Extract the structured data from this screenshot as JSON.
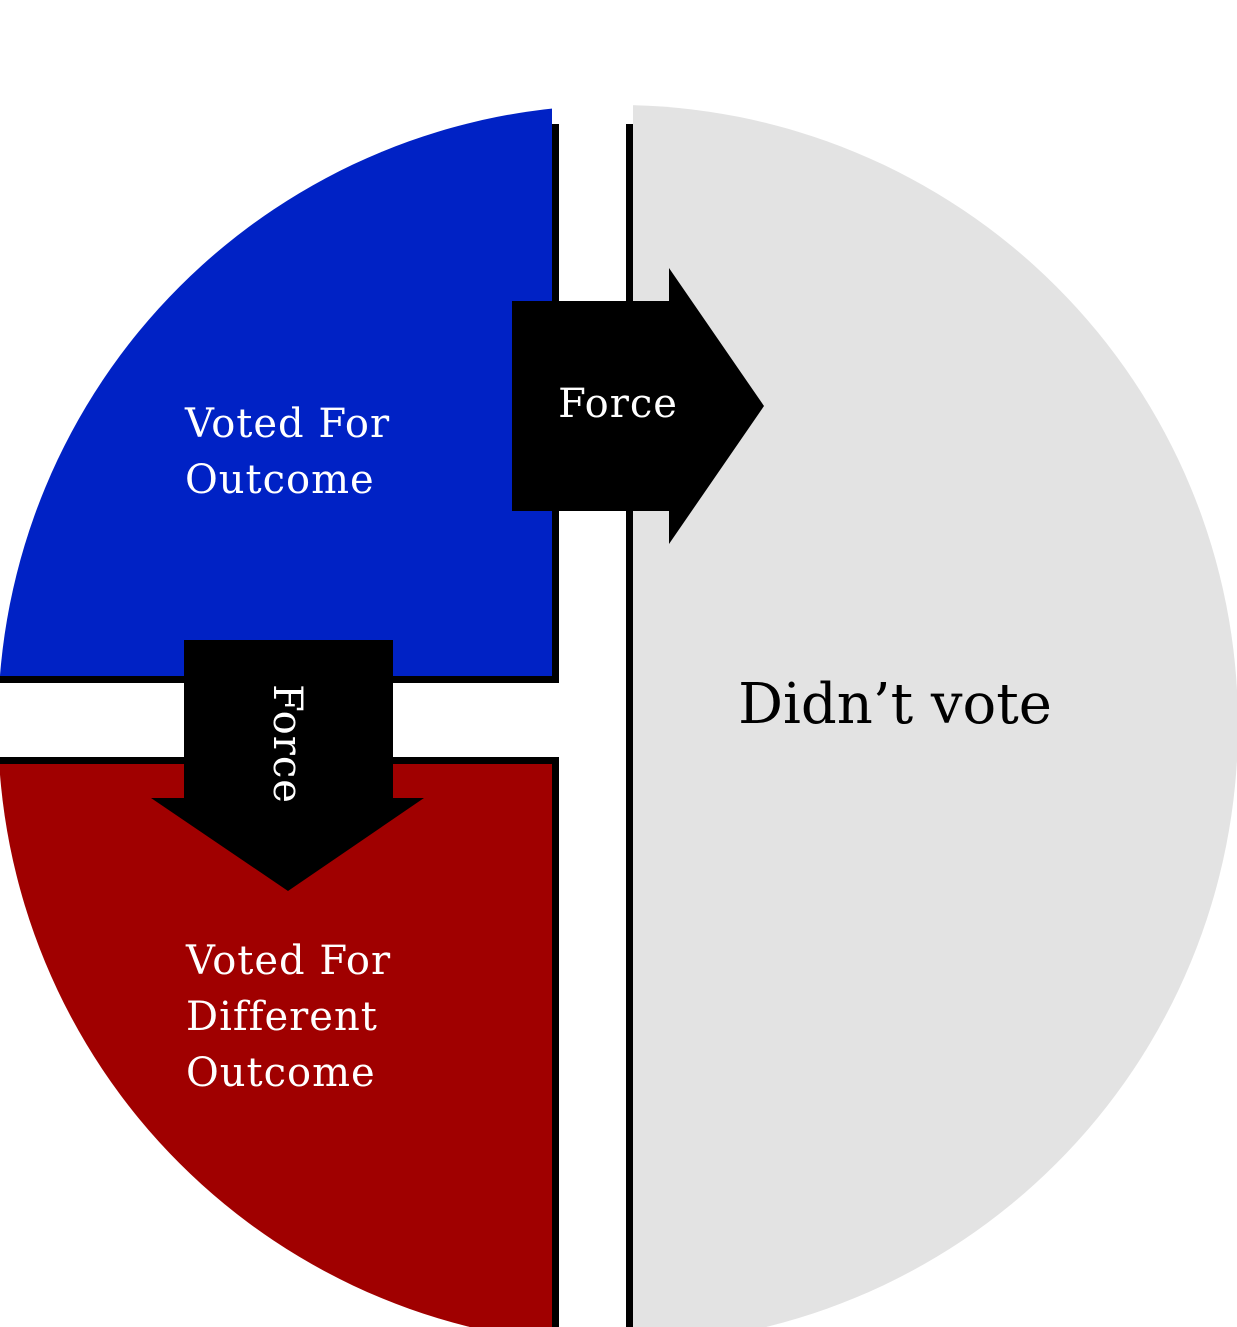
{
  "regions": {
    "voted_for": {
      "lines": [
        "Voted For",
        "Outcome"
      ],
      "color": "#0022c5"
    },
    "voted_against": {
      "lines": [
        "Voted For",
        "Different",
        "Outcome"
      ],
      "color": "#a00000"
    },
    "didnt_vote": {
      "label": "Didn’t vote",
      "color": "#e3e3e3"
    }
  },
  "arrows": {
    "right": {
      "label": "Force"
    },
    "down": {
      "label": "Force"
    }
  }
}
